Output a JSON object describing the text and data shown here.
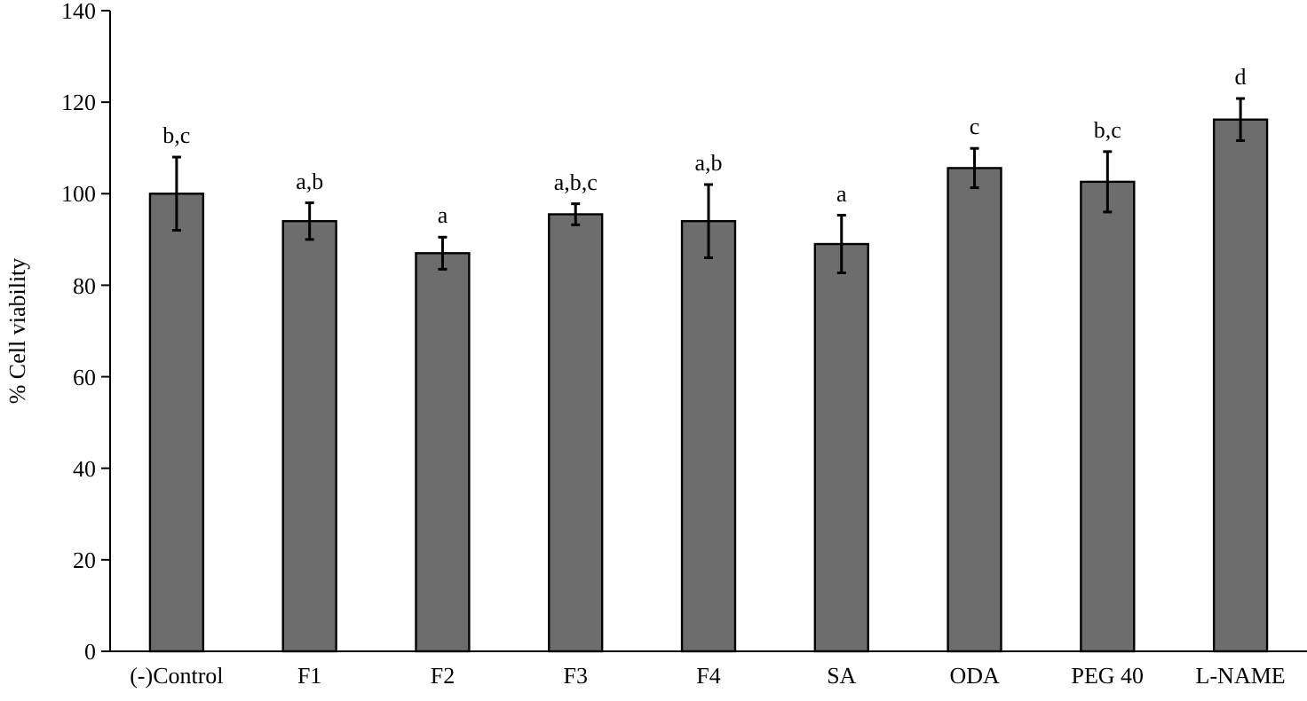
{
  "chart_data": {
    "type": "bar",
    "ylabel": "% Cell viability",
    "categories": [
      "(-)Control",
      "F1",
      "F2",
      "F3",
      "F4",
      "SA",
      "ODA",
      "PEG 40",
      "L-NAME"
    ],
    "values": [
      100,
      94,
      87,
      95.5,
      94,
      89,
      105.6,
      102.6,
      116.2
    ],
    "errors": [
      8,
      4,
      3.5,
      2.3,
      8,
      6.3,
      4.3,
      6.6,
      4.6
    ],
    "color": "#6d6d6d",
    "ylim": [
      0,
      140
    ],
    "yticks": [
      0,
      20,
      40,
      60,
      80,
      100,
      120,
      140
    ],
    "grid": false,
    "annotations": [
      {
        "text": "b,c",
        "x": "(-)Control",
        "y": 108
      },
      {
        "text": "a,b",
        "x": "F1",
        "y": 98
      },
      {
        "text": "a",
        "x": "F2",
        "y": 90.5
      },
      {
        "text": "a,b,c",
        "x": "F3",
        "y": 97.8
      },
      {
        "text": "a,b",
        "x": "F4",
        "y": 102
      },
      {
        "text": "a",
        "x": "SA",
        "y": 95.3
      },
      {
        "text": "c",
        "x": "ODA",
        "y": 109.9
      },
      {
        "text": "b,c",
        "x": "PEG 40",
        "y": 109.2
      },
      {
        "text": "d",
        "x": "L-NAME",
        "y": 120.8
      }
    ]
  }
}
